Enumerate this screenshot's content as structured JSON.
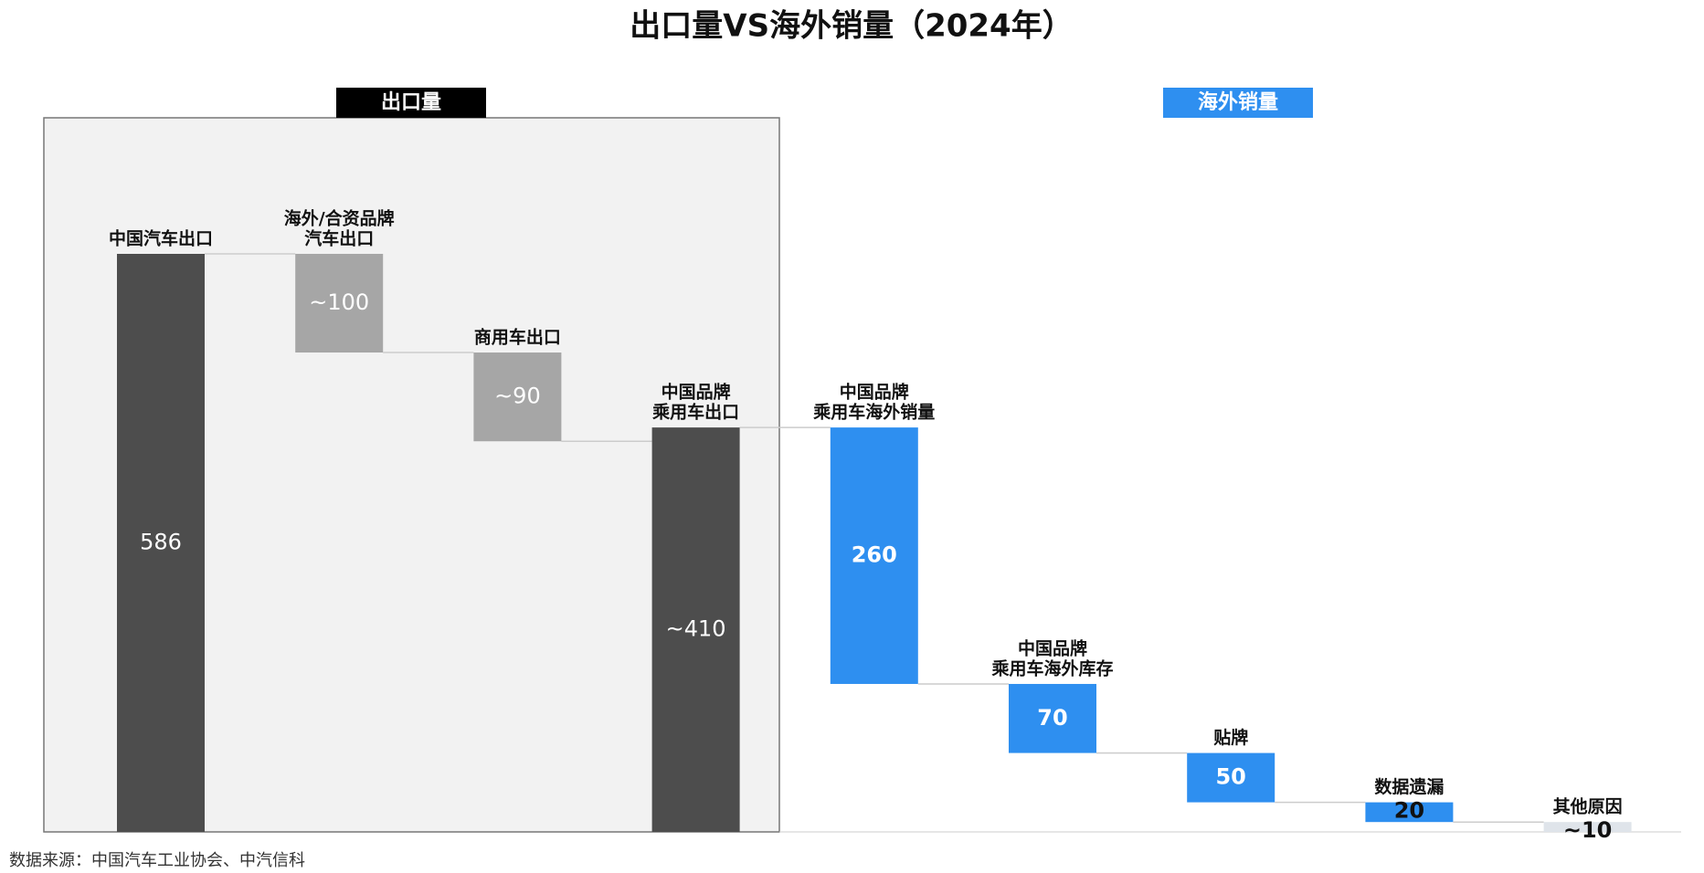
{
  "chart_data": {
    "type": "waterfall",
    "title": "出口量VS海外销量（2024年）",
    "groups": [
      {
        "label": "出口量",
        "color": "#000000"
      },
      {
        "label": "海外销量",
        "color": "#2e8ff0"
      }
    ],
    "categories": [
      [
        "中国汽车出口"
      ],
      [
        "海外/合资品牌",
        "汽车出口"
      ],
      [
        "商用车出口"
      ],
      [
        "中国品牌",
        "乘用车出口"
      ],
      [
        "中国品牌",
        "乘用车海外销量"
      ],
      [
        "中国品牌",
        "乘用车海外库存"
      ],
      [
        "贴牌"
      ],
      [
        "数据遗漏"
      ],
      [
        "其他原因"
      ]
    ],
    "measure": [
      "total",
      "decrease",
      "decrease",
      "total",
      "decrease",
      "decrease",
      "decrease",
      "decrease",
      "decrease"
    ],
    "values": [
      586,
      100,
      90,
      410,
      260,
      70,
      50,
      20,
      10
    ],
    "value_labels": [
      "586",
      "~100",
      "~90",
      "~410",
      "260",
      "70",
      "50",
      "20",
      "~10"
    ],
    "colors": [
      "#4d4d4d",
      "#a6a6a6",
      "#a6a6a6",
      "#4d4d4d",
      "#2e8ff0",
      "#2e8ff0",
      "#2e8ff0",
      "#2e8ff0",
      "#dfe4ea"
    ],
    "source": "数据来源：中国汽车工业协会、中汽信科"
  }
}
